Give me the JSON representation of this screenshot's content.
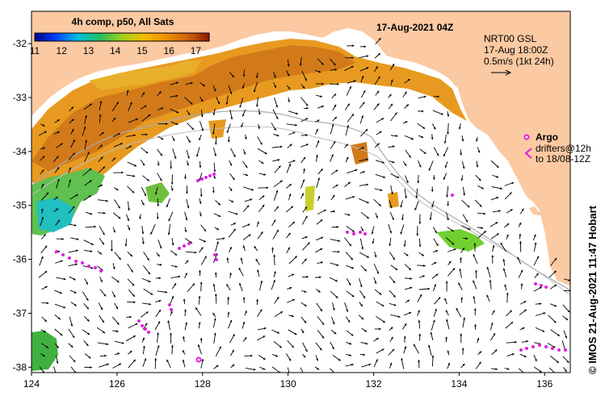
{
  "map": {
    "title": "17-Aug-2021 04Z",
    "colorbar": {
      "title": "4h comp, p50, All Sats",
      "ticks": [
        "11",
        "12",
        "13",
        "14",
        "15",
        "16",
        "17"
      ],
      "range": [
        11,
        17.5
      ]
    },
    "legend": {
      "product": "NRT00 GSL",
      "time": "17-Aug 18:00Z",
      "scale": "0.5m/s (1kt 24h)",
      "argo": "Argo",
      "drifters_line1": "drifters@12h",
      "drifters_line2": "to 18/08-12Z"
    },
    "credit": "© IMOS 21-Aug-2021 11:47 Hobart",
    "lon_ticks": [
      "124",
      "126",
      "128",
      "130",
      "132",
      "134",
      "136"
    ],
    "lat_ticks": [
      "-32",
      "-33",
      "-34",
      "-35",
      "-36",
      "-37",
      "-38"
    ],
    "extent": {
      "lon": [
        124,
        136.6
      ],
      "lat": [
        -38.1,
        -31.4
      ]
    },
    "colors": {
      "land": "#fbc9a2",
      "sea": "#ffffff",
      "drifter": "#e020e0",
      "arrow": "#000000",
      "contour": "#aaaaaa"
    }
  }
}
